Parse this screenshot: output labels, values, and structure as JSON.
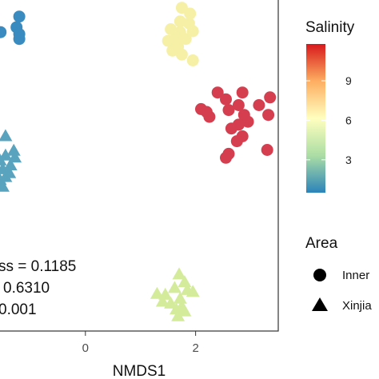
{
  "chart_data": {
    "type": "scatter",
    "xlabel": "NMDS1",
    "x_ticks": [
      0,
      2
    ],
    "xlim": [
      -1.55,
      3.5
    ],
    "ylim": [
      -1.8,
      1.6
    ],
    "stats": [
      "ss = 0.1185",
      "0.6310",
      "0.001"
    ],
    "legend_color": {
      "title": "Salinity",
      "ticks": [
        3,
        6,
        9
      ],
      "range": [
        0.5,
        11.8
      ],
      "colors": [
        "#2b83ba",
        "#abdda4",
        "#ffffbf",
        "#fdae61",
        "#d7191c"
      ]
    },
    "legend_shape": {
      "title": "Area",
      "items": [
        {
          "label": "Inner",
          "shape": "circle"
        },
        {
          "label": "Xinjia",
          "shape": "triangle"
        }
      ]
    },
    "series": [
      {
        "shape": "circle",
        "color": "#3a8bbf",
        "salinity": 0.8,
        "points": [
          [
            -1.2,
            1.43
          ],
          [
            -1.25,
            1.32
          ],
          [
            -1.2,
            1.25
          ],
          [
            -1.2,
            1.2
          ],
          [
            -1.54,
            1.27
          ]
        ]
      },
      {
        "shape": "circle",
        "color": "#f6f0a6",
        "salinity": 5.8,
        "points": [
          [
            1.75,
            1.52
          ],
          [
            1.9,
            1.46
          ],
          [
            1.72,
            1.38
          ],
          [
            1.88,
            1.36
          ],
          [
            1.55,
            1.3
          ],
          [
            1.72,
            1.27
          ],
          [
            1.95,
            1.28
          ],
          [
            1.65,
            1.22
          ],
          [
            1.82,
            1.2
          ],
          [
            1.5,
            1.18
          ],
          [
            1.68,
            1.12
          ],
          [
            1.58,
            1.08
          ],
          [
            1.75,
            1.04
          ],
          [
            1.95,
            0.98
          ]
        ]
      },
      {
        "shape": "circle",
        "color": "#d53e4f",
        "salinity": 11.0,
        "points": [
          [
            2.4,
            0.65
          ],
          [
            2.85,
            0.65
          ],
          [
            3.35,
            0.6
          ],
          [
            2.55,
            0.58
          ],
          [
            2.78,
            0.52
          ],
          [
            3.15,
            0.52
          ],
          [
            2.1,
            0.48
          ],
          [
            2.2,
            0.45
          ],
          [
            2.6,
            0.47
          ],
          [
            2.88,
            0.42
          ],
          [
            3.32,
            0.42
          ],
          [
            2.25,
            0.4
          ],
          [
            2.95,
            0.35
          ],
          [
            2.78,
            0.32
          ],
          [
            2.65,
            0.28
          ],
          [
            2.85,
            0.2
          ],
          [
            2.75,
            0.15
          ],
          [
            3.3,
            0.06
          ],
          [
            2.6,
            0.02
          ],
          [
            2.55,
            -0.02
          ]
        ]
      },
      {
        "shape": "triangle",
        "color": "#5aa3bf",
        "salinity": 1.6,
        "points": [
          [
            -1.45,
            0.2
          ],
          [
            -1.3,
            0.05
          ],
          [
            -1.45,
            0.0
          ],
          [
            -1.28,
            -0.02
          ],
          [
            -1.55,
            -0.05
          ],
          [
            -1.36,
            -0.1
          ],
          [
            -1.5,
            -0.14
          ],
          [
            -1.38,
            -0.18
          ],
          [
            -1.45,
            -0.22
          ],
          [
            -1.55,
            -0.25
          ],
          [
            -1.5,
            -0.32
          ]
        ]
      },
      {
        "shape": "triangle",
        "color": "#d4eb9c",
        "salinity": 3.9,
        "points": [
          [
            1.7,
            -1.22
          ],
          [
            1.8,
            -1.3
          ],
          [
            1.62,
            -1.36
          ],
          [
            1.85,
            -1.38
          ],
          [
            1.95,
            -1.4
          ],
          [
            1.3,
            -1.42
          ],
          [
            1.45,
            -1.43
          ],
          [
            1.72,
            -1.47
          ],
          [
            1.4,
            -1.5
          ],
          [
            1.55,
            -1.52
          ],
          [
            1.75,
            -1.55
          ],
          [
            1.65,
            -1.58
          ],
          [
            1.8,
            -1.6
          ],
          [
            1.68,
            -1.65
          ]
        ]
      }
    ]
  }
}
